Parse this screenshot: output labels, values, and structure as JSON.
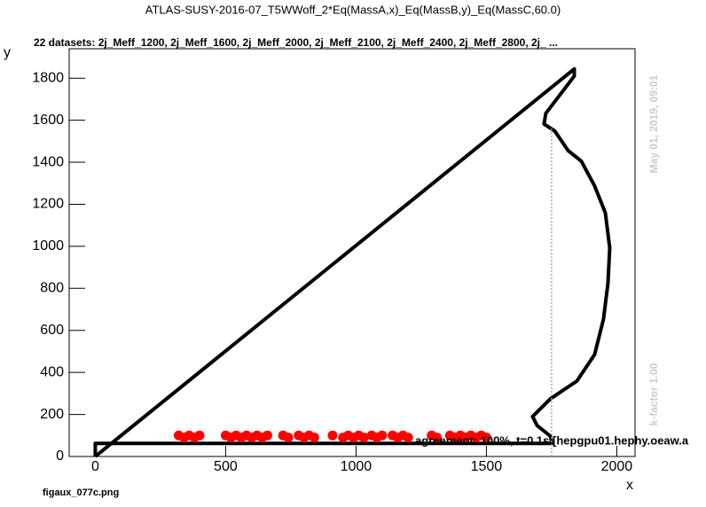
{
  "chart_data": {
    "type": "line",
    "title": "ATLAS-SUSY-2016-07_T5WWoff_2*Eq(MassA,x)_Eq(MassB,y)_Eq(MassC,60.0)",
    "subtitle": "22 datasets: 2j_Meff_1200, 2j_Meff_1600, 2j_Meff_2000, 2j_Meff_2100, 2j_Meff_2400, 2j_Meff_2800, 2j_  ...",
    "xlabel": "x",
    "ylabel": "y",
    "annotation": "agreement: 100%, t=0.1s [hepgpu01.hephy.oeaw.a",
    "timestamp": "May 01, 2019, 09:01",
    "kfactor": "k-factor 1.00",
    "filename": "figaux_077c.png",
    "xlim": [
      -100,
      2070
    ],
    "ylim": [
      0,
      1940
    ],
    "xticks": [
      0,
      500,
      1000,
      1500,
      2000
    ],
    "yticks": [
      0,
      200,
      400,
      600,
      800,
      1000,
      1200,
      1400,
      1600,
      1800
    ],
    "series": [
      {
        "kind": "line",
        "color": "#000000",
        "x": [
          0,
          1837,
          1837,
          1728,
          1721,
          1762,
          1813,
          1864,
          1915,
          1956,
          1973,
          1966,
          1949,
          1915,
          1847,
          1745,
          1677,
          1694,
          1745,
          1752,
          0,
          0
        ],
        "y": [
          0,
          1844,
          1810,
          1633,
          1582,
          1549,
          1456,
          1405,
          1287,
          1160,
          992,
          823,
          654,
          485,
          359,
          274,
          190,
          148,
          97,
          62,
          62,
          0
        ]
      },
      {
        "kind": "dotted",
        "color": "#aaaaaa",
        "x": [
          1750,
          1750
        ],
        "y": [
          0,
          1560
        ]
      },
      {
        "kind": "points",
        "color": "#ff0000",
        "x": [
          320,
          340,
          360,
          380,
          400,
          500,
          520,
          540,
          560,
          580,
          600,
          620,
          640,
          660,
          720,
          740,
          780,
          800,
          820,
          840,
          910,
          950,
          970,
          990,
          1010,
          1030,
          1060,
          1080,
          1100,
          1140,
          1160,
          1180,
          1200,
          1290,
          1310,
          1360,
          1380,
          1400,
          1420,
          1440,
          1460,
          1480,
          1500
        ],
        "y": [
          100,
          90,
          100,
          90,
          100,
          100,
          90,
          100,
          90,
          100,
          90,
          100,
          90,
          100,
          100,
          90,
          100,
          90,
          100,
          90,
          100,
          90,
          100,
          90,
          100,
          90,
          100,
          90,
          100,
          100,
          90,
          100,
          90,
          100,
          90,
          100,
          90,
          100,
          90,
          100,
          90,
          100,
          90
        ]
      }
    ]
  }
}
